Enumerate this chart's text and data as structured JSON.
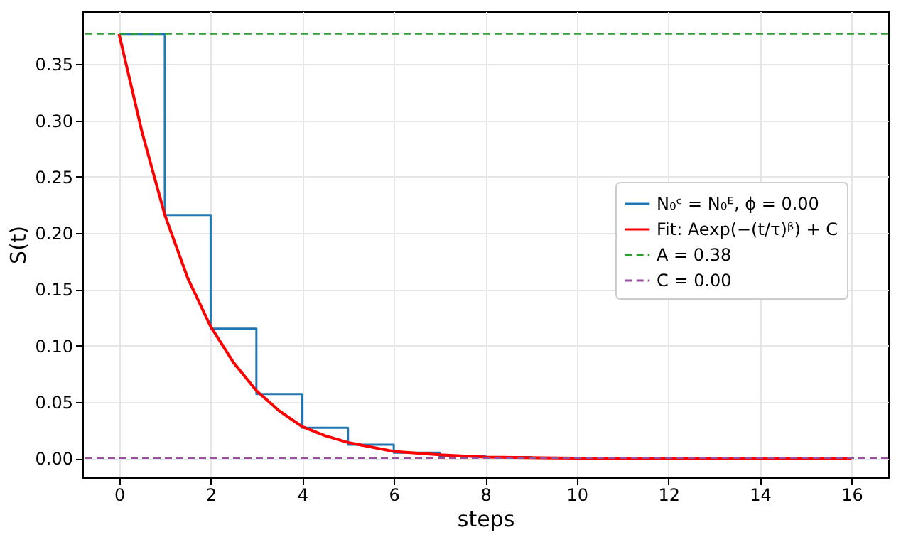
{
  "chart_data": {
    "type": "line",
    "xlabel": "steps",
    "ylabel": "S(t)",
    "xlim": [
      -0.8,
      16.8
    ],
    "xticks": [
      0,
      2,
      4,
      6,
      8,
      10,
      12,
      14,
      16
    ],
    "ylim": [
      -0.017,
      0.397
    ],
    "yticks": [
      {
        "value": 0,
        "label": "0.00"
      },
      0.05,
      {
        "value": 0.1,
        "label": "0.10"
      },
      0.15,
      {
        "value": 0.2,
        "label": "0.20"
      },
      0.25,
      {
        "value": 0.3,
        "label": "0.30"
      },
      0.35
    ],
    "grid": true,
    "legend": "right",
    "line_style": "solid",
    "marker": "none",
    "series": [
      {
        "name": "N₀ᶜ = N₀ᴱ, ϕ = 0.00",
        "type": "step",
        "color": "#1f77b4",
        "x": [
          0,
          1,
          2,
          3,
          4,
          5,
          6,
          7,
          8,
          9
        ],
        "values": [
          0.377,
          0.216,
          0.115,
          0.057,
          0.027,
          0.012,
          0.005,
          0.002,
          0.001,
          0
        ]
      },
      {
        "name": "Fit: Aexp(−(t/τ)ᵝ) + C",
        "color": "#ff0000",
        "x": [
          0,
          0.5,
          1,
          1.5,
          2,
          2.5,
          3,
          3.5,
          4,
          4.5,
          5,
          6,
          7,
          8,
          10,
          12,
          16
        ],
        "values": [
          0.377,
          0.29,
          0.216,
          0.16,
          0.117,
          0.085,
          0.06,
          0.042,
          0.028,
          0.02,
          0.014,
          0.006,
          0.003,
          0.001,
          0,
          0,
          0
        ]
      }
    ],
    "ref_lines": [
      {
        "axis": "y",
        "value": 0.377,
        "label": "A = 0.38",
        "color": "#2ca02c",
        "line_style": "dashed"
      },
      {
        "axis": "y",
        "value": 0,
        "label": "C = 0.00",
        "color": "#9b4f9b",
        "line_style": "dashed"
      }
    ]
  }
}
